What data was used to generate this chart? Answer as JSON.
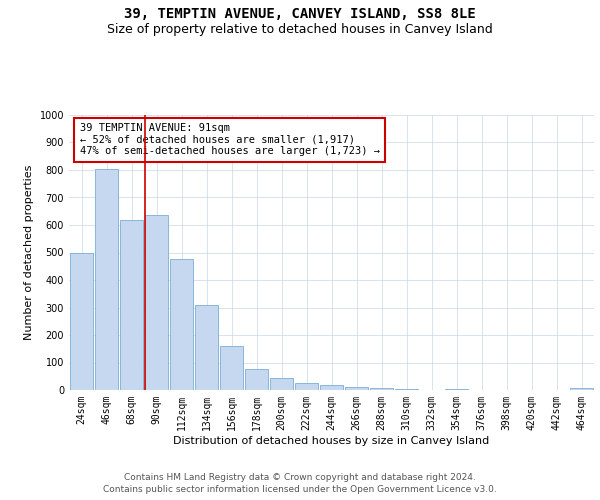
{
  "title1": "39, TEMPTIN AVENUE, CANVEY ISLAND, SS8 8LE",
  "title2": "Size of property relative to detached houses in Canvey Island",
  "xlabel": "Distribution of detached houses by size in Canvey Island",
  "ylabel": "Number of detached properties",
  "categories": [
    "24sqm",
    "46sqm",
    "68sqm",
    "90sqm",
    "112sqm",
    "134sqm",
    "156sqm",
    "178sqm",
    "200sqm",
    "222sqm",
    "244sqm",
    "266sqm",
    "288sqm",
    "310sqm",
    "332sqm",
    "354sqm",
    "376sqm",
    "398sqm",
    "420sqm",
    "442sqm",
    "464sqm"
  ],
  "values": [
    500,
    805,
    617,
    635,
    478,
    310,
    160,
    78,
    45,
    25,
    20,
    12,
    8,
    5,
    0,
    3,
    0,
    0,
    0,
    0,
    7
  ],
  "bar_color": "#c5d8f0",
  "bar_edgecolor": "#7baed4",
  "vline_x_idx": 3,
  "vline_color": "#cc0000",
  "annotation_text": "39 TEMPTIN AVENUE: 91sqm\n← 52% of detached houses are smaller (1,917)\n47% of semi-detached houses are larger (1,723) →",
  "annotation_box_color": "#ffffff",
  "annotation_border_color": "#cc0000",
  "ylim": [
    0,
    1000
  ],
  "yticks": [
    0,
    100,
    200,
    300,
    400,
    500,
    600,
    700,
    800,
    900,
    1000
  ],
  "footer_line1": "Contains HM Land Registry data © Crown copyright and database right 2024.",
  "footer_line2": "Contains public sector information licensed under the Open Government Licence v3.0.",
  "bg_color": "#ffffff",
  "grid_color": "#c8d8e8",
  "title1_fontsize": 10,
  "title2_fontsize": 9,
  "axis_label_fontsize": 8,
  "tick_fontsize": 7,
  "annotation_fontsize": 7.5,
  "footer_fontsize": 6.5
}
